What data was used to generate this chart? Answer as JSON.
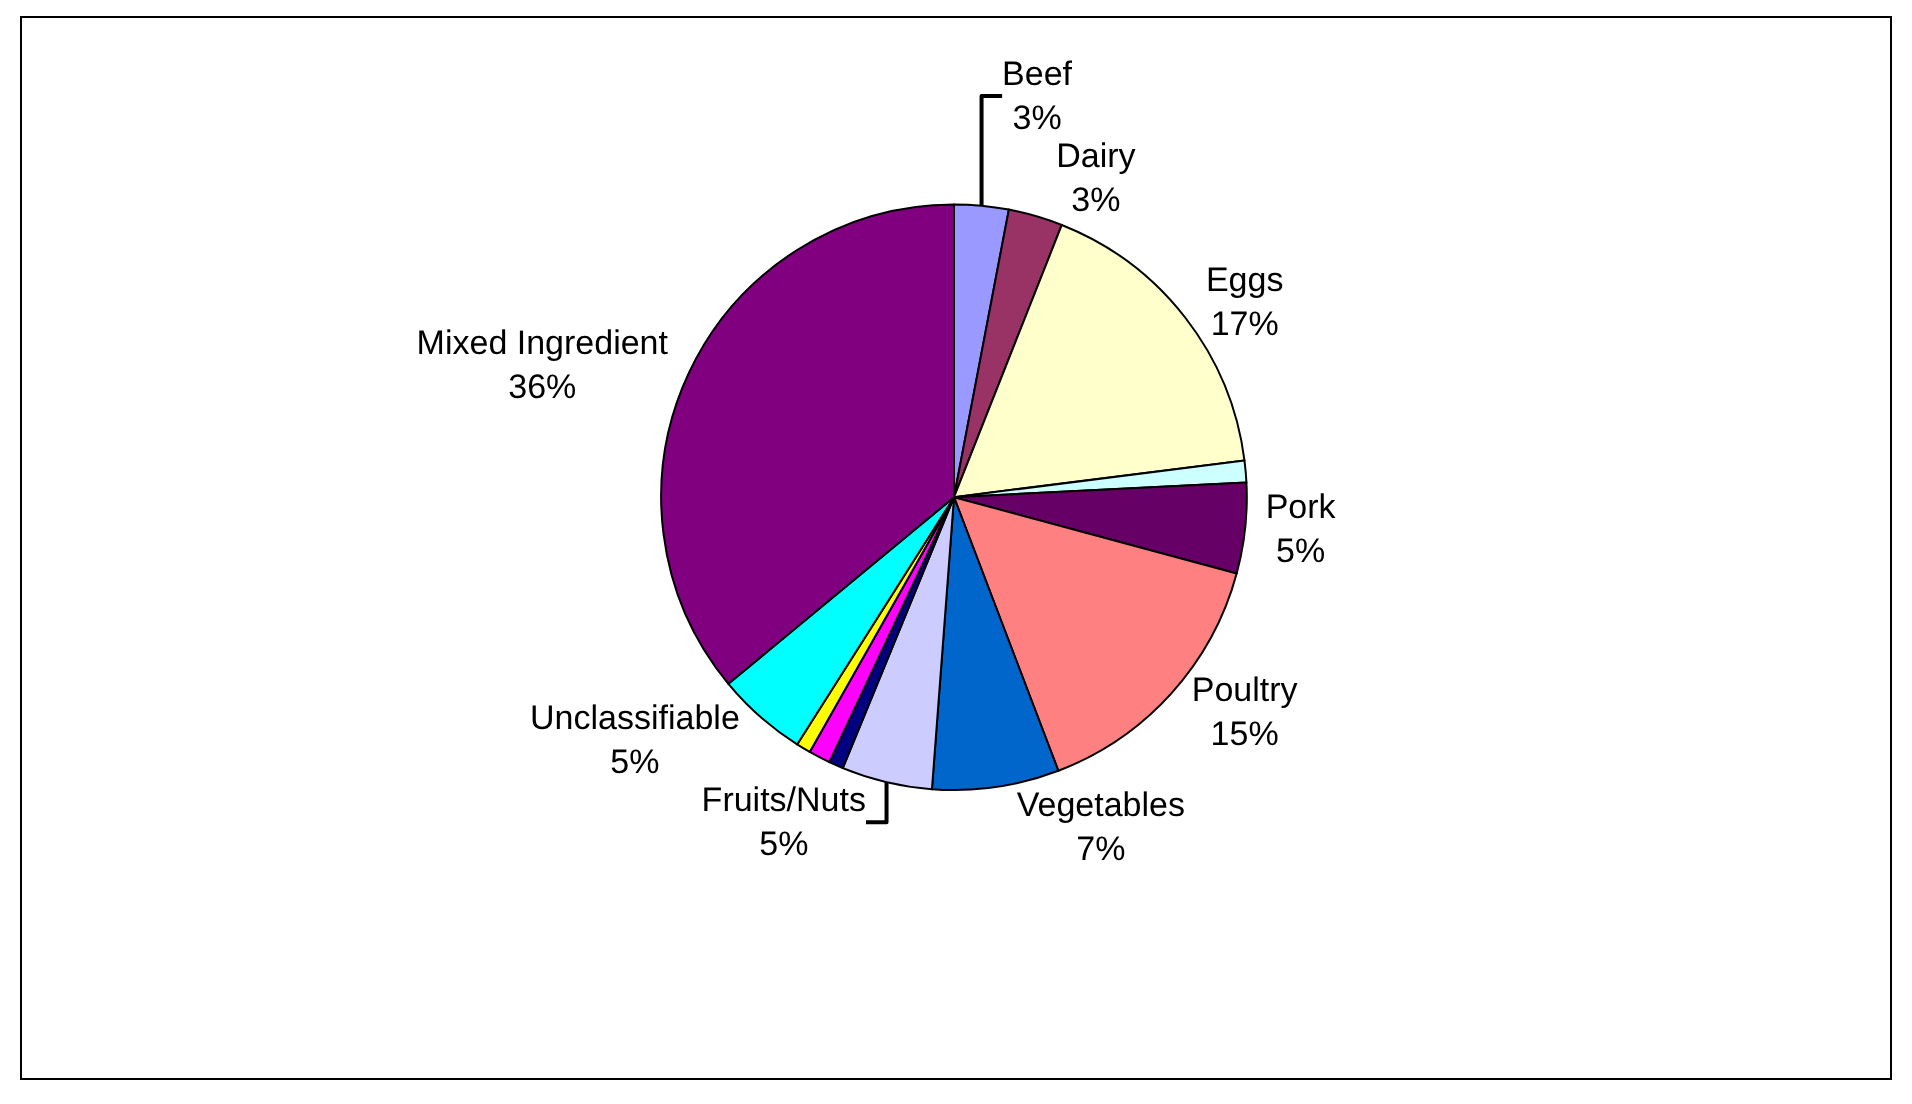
{
  "chart_data": {
    "type": "pie",
    "categories": [
      "Beef",
      "Dairy",
      "Eggs",
      null,
      "Pork",
      "Poultry",
      "Vegetables",
      "Fruits/Nuts",
      null,
      null,
      null,
      "Unclassifiable",
      "Mixed Ingredient"
    ],
    "values": [
      3,
      3,
      17,
      1.2,
      5,
      15,
      7,
      5,
      0.8,
      1.2,
      0.8,
      5,
      36
    ],
    "value_labels": [
      "3%",
      "3%",
      "17%",
      null,
      "5%",
      "15%",
      "7%",
      "5%",
      null,
      null,
      null,
      "5%",
      "36%"
    ],
    "colors": [
      "#9999ff",
      "#993366",
      "#ffffcc",
      "#ccffff",
      "#660066",
      "#ff8080",
      "#0066cc",
      "#ccccff",
      "#000080",
      "#ff00ff",
      "#ffff00",
      "#00ffff",
      "#800080"
    ],
    "legend": false
  }
}
